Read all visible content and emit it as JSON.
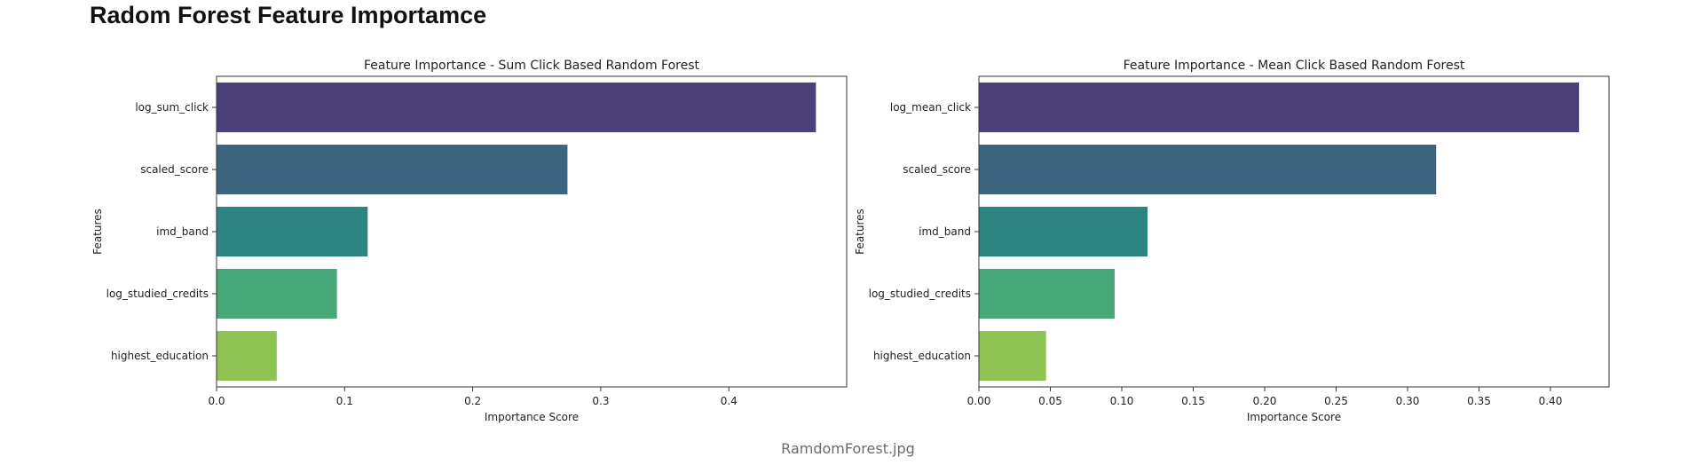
{
  "page": {
    "heading": "Radom Forest Feature Importamce",
    "caption": "RamdomForest.jpg"
  },
  "chart_data": [
    {
      "type": "bar",
      "orientation": "horizontal",
      "title": "Feature Importance - Sum Click Based Random Forest",
      "xlabel": "Importance Score",
      "ylabel": "Features",
      "categories": [
        "log_sum_click",
        "scaled_score",
        "imd_band",
        "log_studied_credits",
        "highest_education"
      ],
      "values": [
        0.468,
        0.274,
        0.118,
        0.094,
        0.047
      ],
      "colors": [
        "#4b3f7a",
        "#3e6580",
        "#2c8580",
        "#46a876",
        "#8fc455"
      ],
      "xlim": [
        0,
        0.492
      ],
      "xticks": [
        0,
        0.1,
        0.2,
        0.3,
        0.4
      ],
      "xtick_labels": [
        "0.0",
        "0.1",
        "0.2",
        "0.3",
        "0.4"
      ],
      "grid": false
    },
    {
      "type": "bar",
      "orientation": "horizontal",
      "title": "Feature Importance - Mean Click Based Random Forest",
      "xlabel": "Importance Score",
      "ylabel": "Features",
      "categories": [
        "log_mean_click",
        "scaled_score",
        "imd_band",
        "log_studied_credits",
        "highest_education"
      ],
      "values": [
        0.42,
        0.32,
        0.118,
        0.095,
        0.047
      ],
      "colors": [
        "#4b3f7a",
        "#3e6580",
        "#2c8580",
        "#46a876",
        "#8fc455"
      ],
      "xlim": [
        0,
        0.441
      ],
      "xticks": [
        0,
        0.05,
        0.1,
        0.15,
        0.2,
        0.25,
        0.3,
        0.35,
        0.4
      ],
      "xtick_labels": [
        "0.00",
        "0.05",
        "0.10",
        "0.15",
        "0.20",
        "0.25",
        "0.30",
        "0.35",
        "0.40"
      ],
      "grid": false
    }
  ]
}
